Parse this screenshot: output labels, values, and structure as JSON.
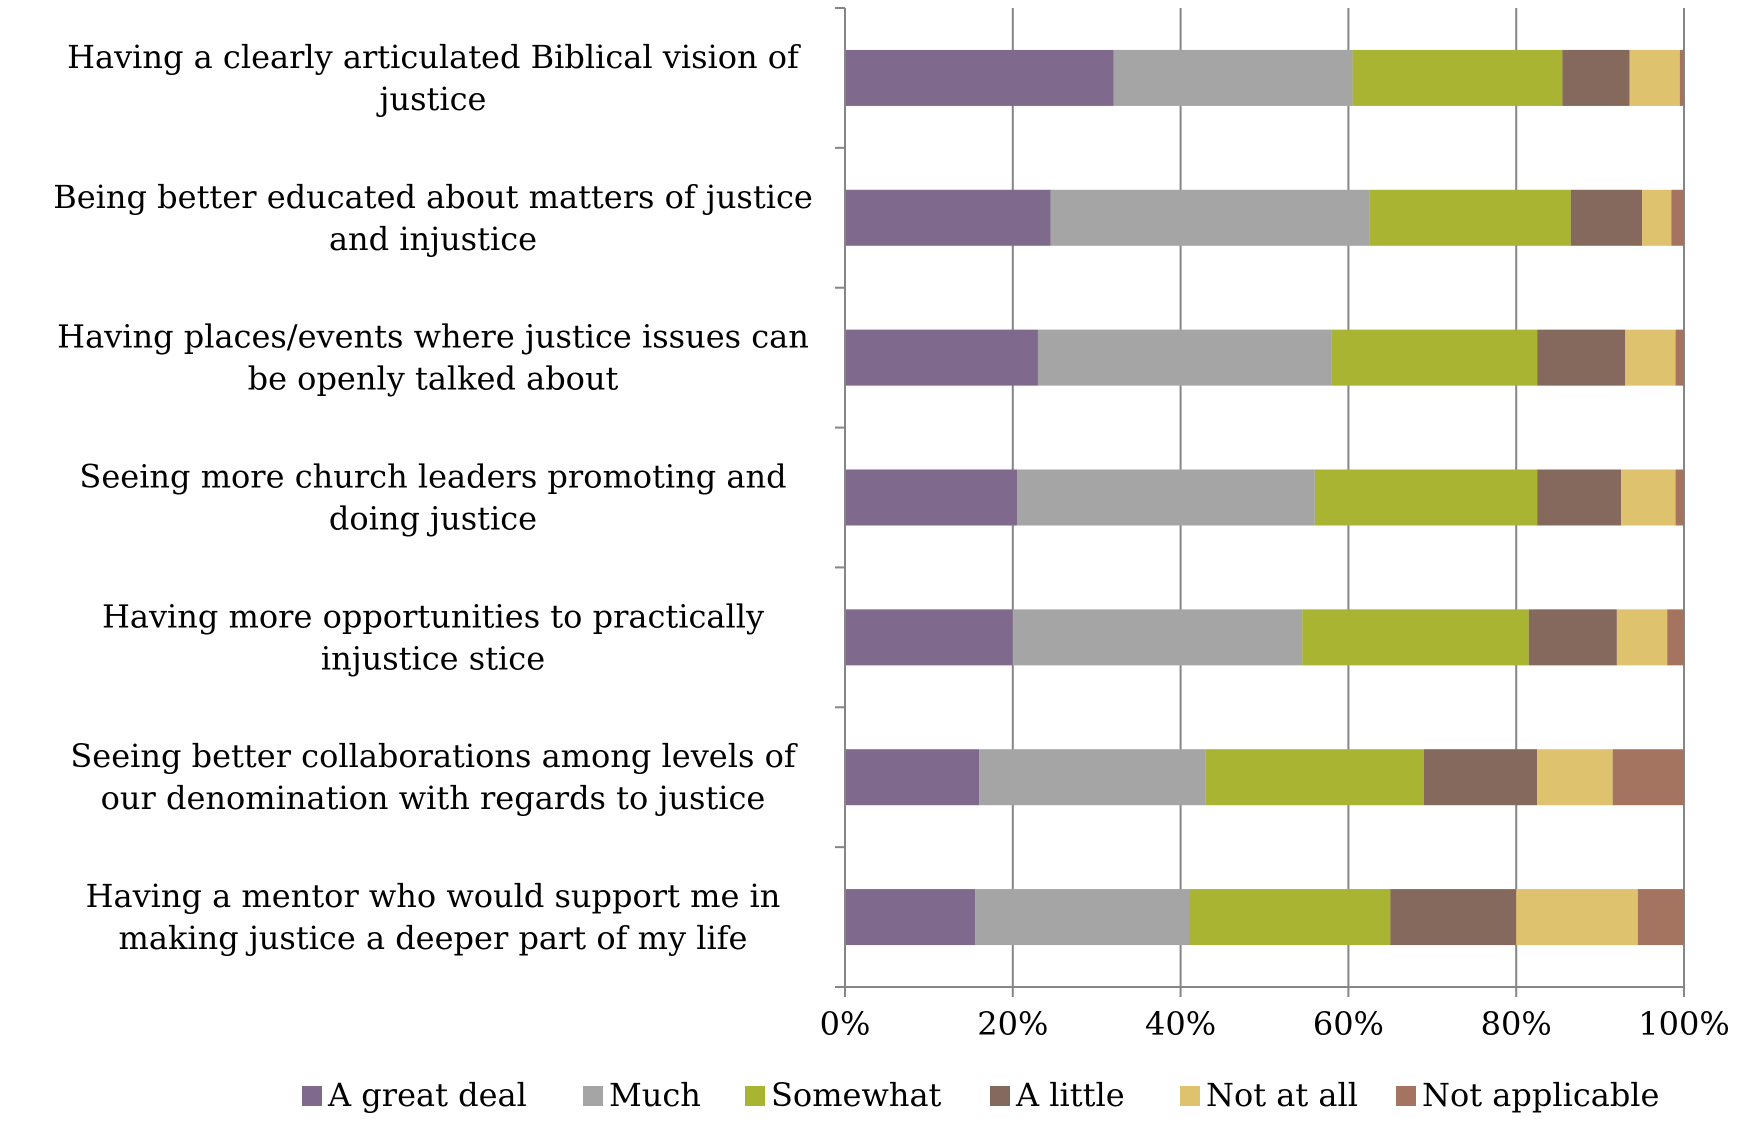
{
  "chart_data": {
    "type": "bar",
    "orientation": "horizontal",
    "stacked": "percent",
    "categories": [
      [
        "Having a clearly articulated Biblical vision of",
        "justice"
      ],
      [
        "Being better educated about matters of justice",
        "and injustice"
      ],
      [
        "Having places/events where justice issues can",
        "be openly talked about"
      ],
      [
        "Seeing more church leaders promoting and",
        "doing justice"
      ],
      [
        "Having more opportunities to practically",
        "injustice   stice"
      ],
      [
        "Seeing better collaborations among levels of",
        "our denomination with regards to justice"
      ],
      [
        "Having a mentor who would support me in",
        "making justice a deeper part of my life"
      ]
    ],
    "series": [
      {
        "name": "A great deal",
        "color": "#7f6a8d",
        "values": [
          32,
          24.5,
          23,
          20.5,
          20,
          16,
          15.5
        ]
      },
      {
        "name": "Much",
        "color": "#a5a5a5",
        "values": [
          28.5,
          38,
          35,
          35.5,
          34.5,
          27,
          25.5
        ]
      },
      {
        "name": "Somewhat",
        "color": "#a8b432",
        "values": [
          25,
          24,
          24.5,
          26.5,
          27,
          26,
          24
        ]
      },
      {
        "name": "A little",
        "color": "#84695c",
        "values": [
          8,
          8.5,
          10.5,
          10,
          10.5,
          13.5,
          15
        ]
      },
      {
        "name": "Not at all",
        "color": "#dfc26e",
        "values": [
          6,
          3.5,
          6,
          6.5,
          6,
          9,
          14.5
        ]
      },
      {
        "name": "Not applicable",
        "color": "#a57460",
        "values": [
          0.5,
          1.5,
          1,
          1,
          2,
          8.5,
          5.5
        ]
      }
    ],
    "xlim": [
      0,
      100
    ],
    "xticks": [
      "0%",
      "20%",
      "40%",
      "60%",
      "80%",
      "100%"
    ],
    "grid": true,
    "legend_position": "bottom",
    "colors": {
      "axis": "#868686",
      "grid": "#868686"
    }
  }
}
